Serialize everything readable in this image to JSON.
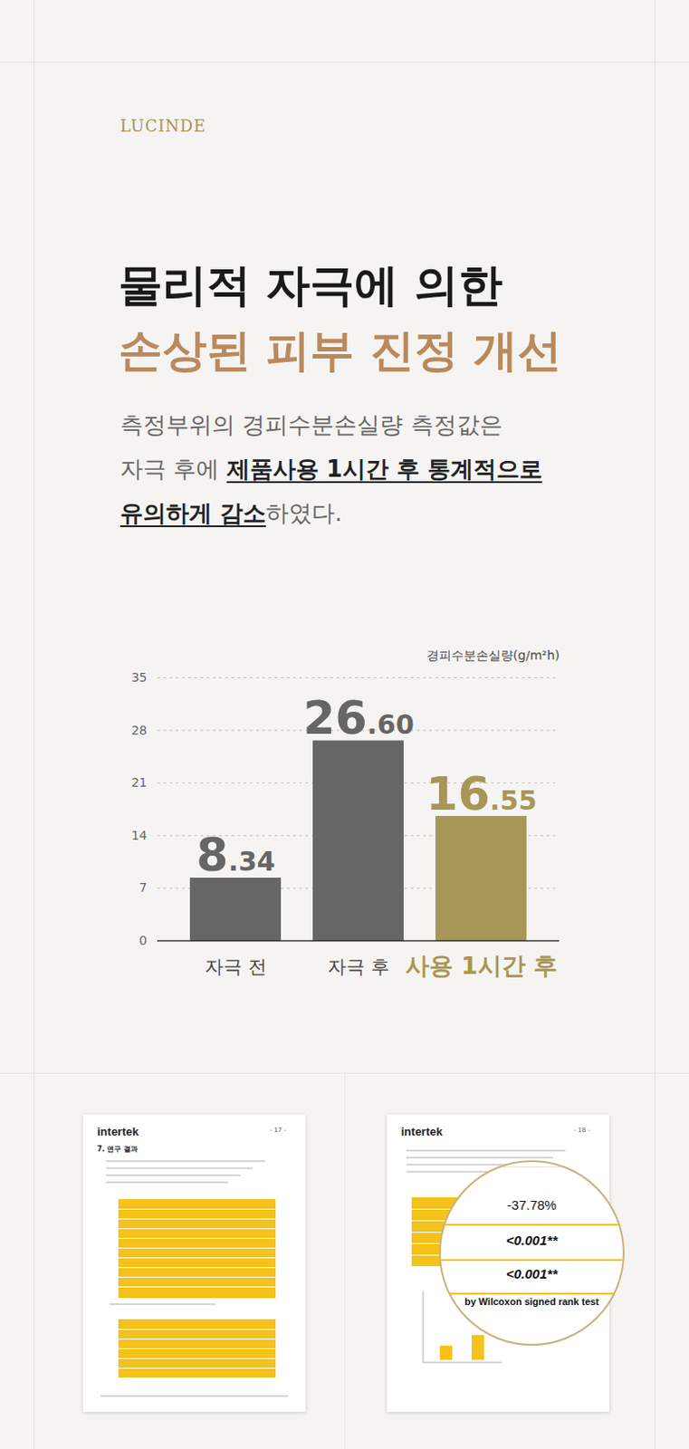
{
  "page": {
    "brand": "LUCINDE",
    "headline": [
      "물리적 자극에 의한",
      "손상된 피부 진정 개선"
    ],
    "body": [
      [
        {
          "text": "측정부위의 경피수분손실량 측정값은",
          "underline": false
        }
      ],
      [
        {
          "text": "자극 후에 ",
          "underline": false
        },
        {
          "text": "제품사용 1시간 후 통계적으로",
          "underline": true
        }
      ],
      [
        {
          "text": "유의하게 감소",
          "underline": true
        },
        {
          "text": "하였다.",
          "underline": false
        }
      ]
    ],
    "documents": [
      {
        "logo": "intertek",
        "page": "- 17 -",
        "heading": "7. 연구 결과"
      },
      {
        "logo": "intertek",
        "page": "- 18 -",
        "zoom": [
          "-37.78%",
          "<0.001**",
          "<0.001**",
          "by Wilcoxon signed rank test"
        ]
      }
    ]
  },
  "chart_data": {
    "type": "bar",
    "ylabel": "경피수분손실량(g/m²h)",
    "categories": [
      "자극 전",
      "자극 후",
      "사용 1시간 후"
    ],
    "values": [
      8.34,
      26.6,
      16.55
    ],
    "value_labels": [
      "8.34",
      "26.60",
      "16.55"
    ],
    "colors": [
      "#666666",
      "#666666",
      "#a89656"
    ],
    "ylim": [
      0,
      35
    ],
    "yticks": [
      0,
      7,
      14,
      21,
      28,
      35
    ],
    "grid": true,
    "data_labels": true
  }
}
